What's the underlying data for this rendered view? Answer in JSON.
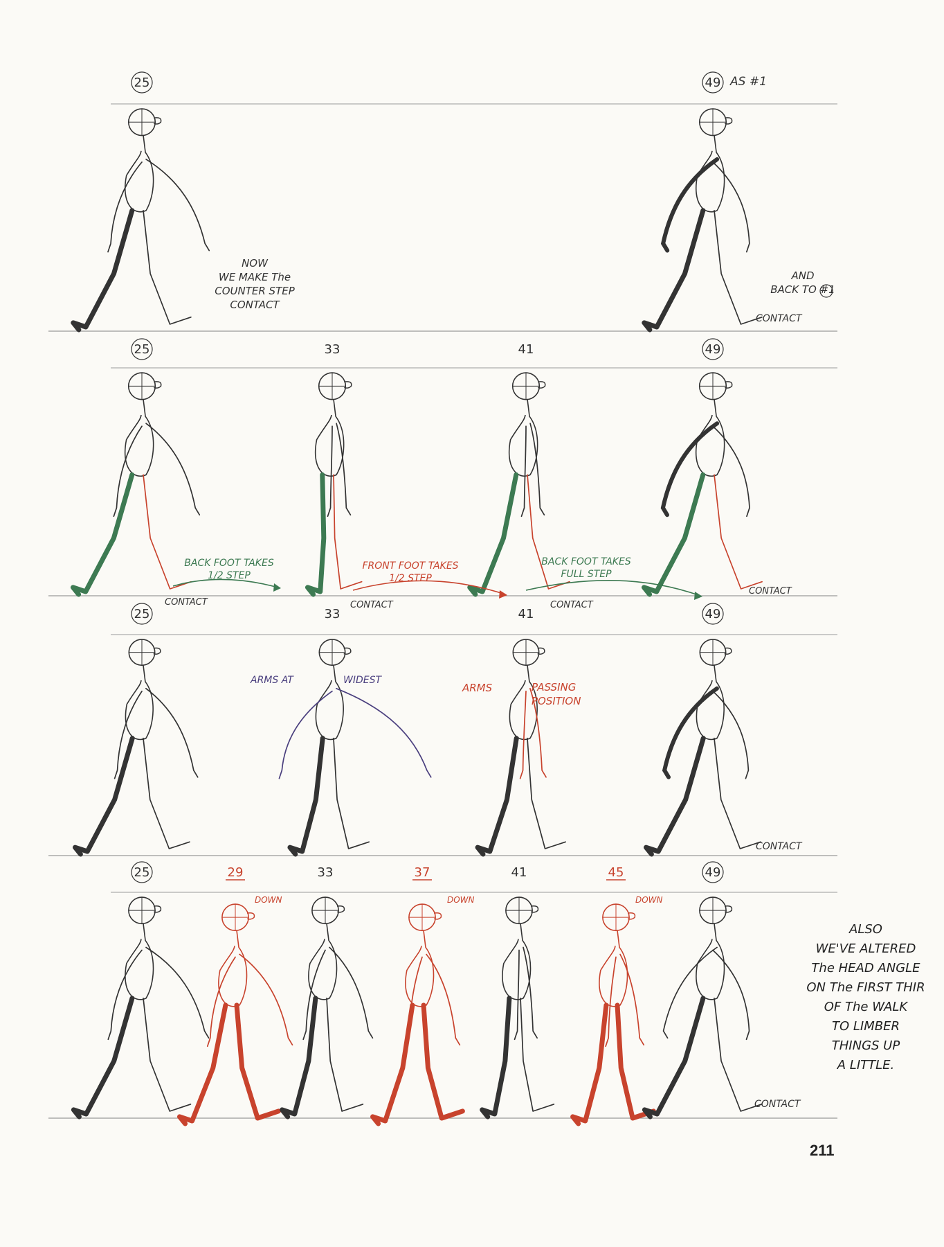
{
  "page_number": "211",
  "colors": {
    "paper": "#fbfaf6",
    "pencil": "#333333",
    "red": "#c8432d",
    "green": "#3d7a52",
    "purple": "#4a3f7e",
    "ground": "#9a9a9a"
  },
  "rows": [
    {
      "frames": [
        {
          "label": "25",
          "circled": true,
          "underlined": false,
          "color": "pencil",
          "note": ""
        },
        {
          "label": "49",
          "circled": true,
          "underlined": false,
          "color": "pencil",
          "note": "AS #1"
        }
      ],
      "notes": [
        "NOW",
        "WE MAKE The",
        "COUNTER STEP",
        "CONTACT"
      ],
      "right_note": [
        "AND",
        "BACK TO #1"
      ],
      "contacts": [
        "CONTACT"
      ]
    },
    {
      "frames": [
        {
          "label": "25",
          "circled": true,
          "underlined": false,
          "color": "pencil",
          "note": ""
        },
        {
          "label": "33",
          "circled": false,
          "underlined": false,
          "color": "pencil",
          "note": ""
        },
        {
          "label": "41",
          "circled": false,
          "underlined": false,
          "color": "pencil",
          "note": ""
        },
        {
          "label": "49",
          "circled": true,
          "underlined": false,
          "color": "pencil",
          "note": ""
        }
      ],
      "arrows": [
        {
          "line1": "BACK FOOT TAKES",
          "line2": "1/2 STEP",
          "color": "green"
        },
        {
          "line1": "FRONT FOOT TAKES",
          "line2": "1/2 STEP",
          "color": "red"
        },
        {
          "line1": "BACK FOOT TAKES",
          "line2": "FULL STEP",
          "color": "green"
        }
      ],
      "contacts": [
        "CONTACT",
        "CONTACT",
        "CONTACT",
        "CONTACT"
      ]
    },
    {
      "frames": [
        {
          "label": "25",
          "circled": true,
          "underlined": false,
          "color": "pencil",
          "note": ""
        },
        {
          "label": "33",
          "circled": false,
          "underlined": false,
          "color": "pencil",
          "note": ""
        },
        {
          "label": "41",
          "circled": false,
          "underlined": false,
          "color": "pencil",
          "note": ""
        },
        {
          "label": "49",
          "circled": true,
          "underlined": false,
          "color": "pencil",
          "note": ""
        }
      ],
      "notes_arms_widest": [
        "ARMS AT",
        "WIDEST"
      ],
      "notes_arms_passing": [
        "ARMS",
        "PASSING",
        "POSITION"
      ],
      "contacts": [
        "CONTACT"
      ]
    },
    {
      "frames": [
        {
          "label": "25",
          "circled": true,
          "underlined": false,
          "color": "pencil",
          "note": ""
        },
        {
          "label": "29",
          "circled": false,
          "underlined": true,
          "color": "red",
          "note": "DOWN"
        },
        {
          "label": "33",
          "circled": false,
          "underlined": false,
          "color": "pencil",
          "note": ""
        },
        {
          "label": "37",
          "circled": false,
          "underlined": true,
          "color": "red",
          "note": "DOWN"
        },
        {
          "label": "41",
          "circled": false,
          "underlined": false,
          "color": "pencil",
          "note": ""
        },
        {
          "label": "45",
          "circled": false,
          "underlined": true,
          "color": "red",
          "note": "DOWN"
        },
        {
          "label": "49",
          "circled": true,
          "underlined": false,
          "color": "pencil",
          "note": ""
        }
      ],
      "side_note": [
        "ALSO",
        "WE'VE ALTERED",
        "The HEAD ANGLE",
        "ON The FIRST THIR",
        "OF The WALK",
        "TO LIMBER",
        "THINGS UP",
        "A LITTLE."
      ],
      "contacts": [
        "CONTACT"
      ]
    }
  ]
}
